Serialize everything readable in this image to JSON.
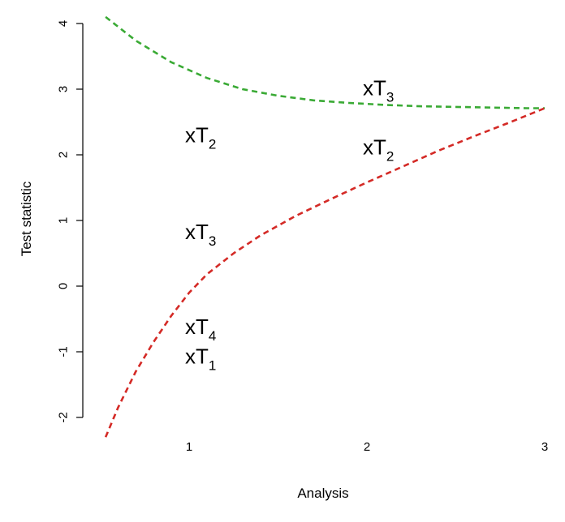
{
  "chart_data": {
    "type": "line",
    "title": "",
    "xlabel": "Analysis",
    "ylabel": "Test statistic",
    "xlim": [
      0.5,
      3.05
    ],
    "ylim": [
      -2.3,
      4.2
    ],
    "xticks": [
      "1",
      "2",
      "3"
    ],
    "yticks": [
      "-2",
      "-1",
      "0",
      "1",
      "2",
      "3",
      "4"
    ],
    "grid": false,
    "series": [
      {
        "color": "#3aaa35",
        "style": "dashed",
        "x": [
          0.53,
          0.7,
          0.9,
          1.1,
          1.3,
          1.5,
          1.7,
          1.9,
          2.1,
          2.3,
          2.5,
          2.7,
          2.9,
          3.0
        ],
        "y": [
          4.1,
          3.74,
          3.41,
          3.17,
          3.0,
          2.9,
          2.83,
          2.79,
          2.76,
          2.74,
          2.73,
          2.72,
          2.71,
          2.71
        ]
      },
      {
        "color": "#d42a26",
        "style": "dashed",
        "x": [
          0.53,
          0.6,
          0.7,
          0.8,
          0.9,
          1.0,
          1.1,
          1.25,
          1.4,
          1.6,
          1.8,
          2.0,
          2.2,
          2.4,
          2.6,
          2.8,
          3.0
        ],
        "y": [
          -2.3,
          -1.85,
          -1.3,
          -0.85,
          -0.45,
          -0.1,
          0.18,
          0.5,
          0.77,
          1.07,
          1.33,
          1.58,
          1.82,
          2.06,
          2.28,
          2.49,
          2.71
        ]
      }
    ],
    "annotations": [
      {
        "x": 1,
        "y": 2.3,
        "text": "xT",
        "sub": "2"
      },
      {
        "x": 1,
        "y": 0.83,
        "text": "xT",
        "sub": "3"
      },
      {
        "x": 1,
        "y": -0.62,
        "text": "xT",
        "sub": "4"
      },
      {
        "x": 1,
        "y": -1.07,
        "text": "xT",
        "sub": "1"
      },
      {
        "x": 2,
        "y": 3.02,
        "text": "xT",
        "sub": "3"
      },
      {
        "x": 2,
        "y": 2.12,
        "text": "xT",
        "sub": "2"
      }
    ]
  }
}
